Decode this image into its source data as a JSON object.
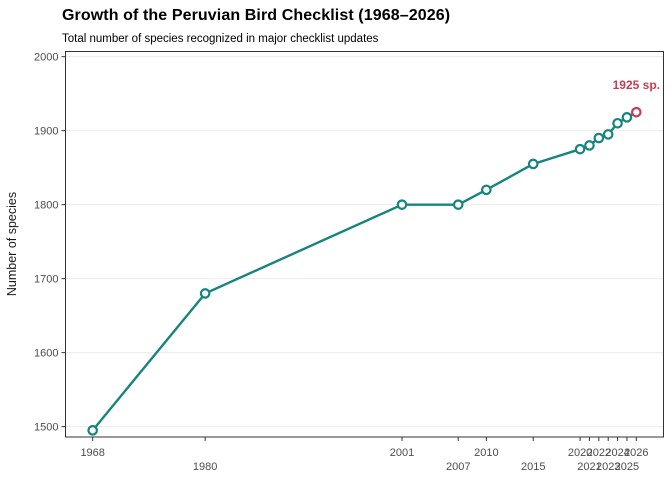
{
  "chart_data": {
    "type": "line",
    "title": "Growth of the Peruvian Bird Checklist (1968–2026)",
    "subtitle": "Total number of species recognized in major checklist updates",
    "xlabel": "",
    "ylabel": "Number of species",
    "x": [
      1968,
      1980,
      2001,
      2007,
      2010,
      2015,
      2020,
      2021,
      2022,
      2023,
      2024,
      2025,
      2026
    ],
    "values": [
      1495,
      1680,
      1800,
      1800,
      1820,
      1855,
      1875,
      1880,
      1890,
      1895,
      1910,
      1918,
      1925
    ],
    "x_ticks": [
      1968,
      1980,
      2001,
      2007,
      2010,
      2015,
      2020,
      2021,
      2022,
      2023,
      2024,
      2025,
      2026
    ],
    "y_ticks": [
      1500,
      1600,
      1700,
      1800,
      1900,
      2000
    ],
    "x_range": [
      1965.1,
      2028.9
    ],
    "y_range": [
      1486,
      2007
    ],
    "grid": "horizontal-major-only",
    "legend": "none",
    "marker": "open-circle",
    "annotation": {
      "text": "1925 sp.",
      "x": 2026,
      "y": 1925
    },
    "highlight_last_point": true,
    "colors": {
      "line": "#17857C",
      "point_fill": "#FFFFFF",
      "highlight": "#C83C55",
      "grid": "#EBEBEB",
      "border": "#333333",
      "tick_label": "#4D4D4D",
      "axis_title": "#1A1A1A",
      "title": "#000000",
      "background": "#FFFFFF"
    }
  }
}
